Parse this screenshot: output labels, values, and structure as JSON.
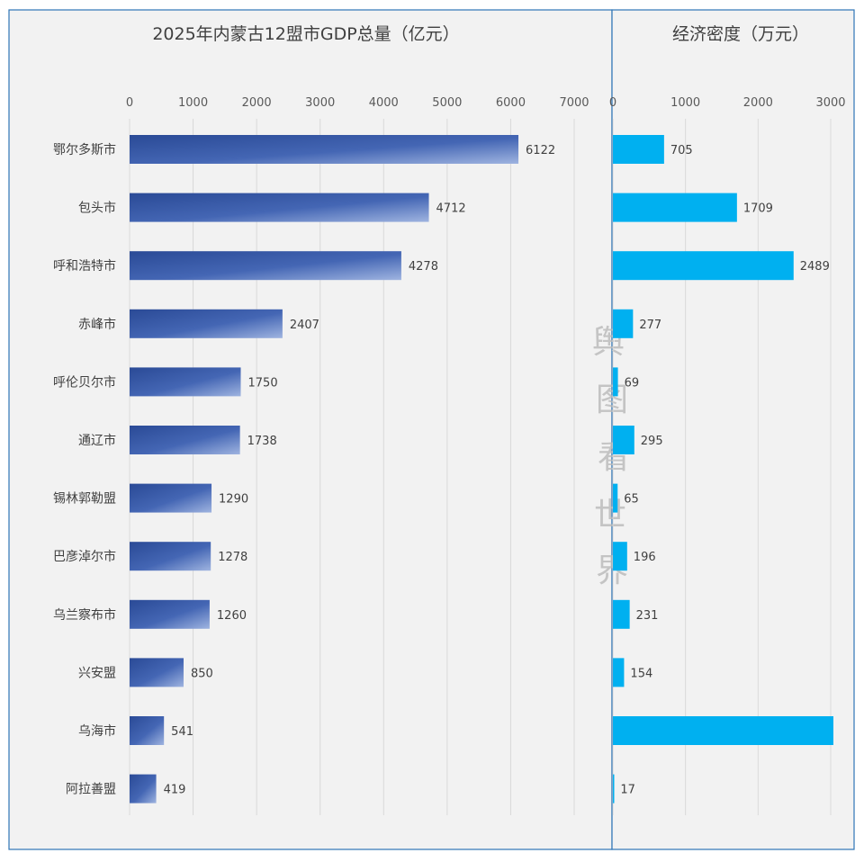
{
  "chart_data": [
    {
      "type": "bar",
      "orientation": "horizontal",
      "title": "2025年内蒙古12盟市GDP总量（亿元）",
      "categories": [
        "鄂尔多斯市",
        "包头市",
        "呼和浩特市",
        "赤峰市",
        "呼伦贝尔市",
        "通辽市",
        "锡林郭勒盟",
        "巴彦淖尔市",
        "乌兰察布市",
        "兴安盟",
        "乌海市",
        "阿拉善盟"
      ],
      "values": [
        6122,
        4712,
        4278,
        2407,
        1750,
        1738,
        1290,
        1278,
        1260,
        850,
        541,
        419
      ],
      "xlim": [
        0,
        7000
      ],
      "xticks": [
        0,
        1000,
        2000,
        3000,
        4000,
        5000,
        6000,
        7000
      ],
      "axis_position": "top",
      "grid": true,
      "data_labels": true,
      "color": "#3a5fae"
    },
    {
      "type": "bar",
      "orientation": "horizontal",
      "title": "经济密度（万元）",
      "categories": [
        "鄂尔多斯市",
        "包头市",
        "呼和浩特市",
        "赤峰市",
        "呼伦贝尔市",
        "通辽市",
        "锡林郭勒盟",
        "巴彦淖尔市",
        "乌兰察布市",
        "兴安盟",
        "乌海市",
        "阿拉善盟"
      ],
      "values": [
        705,
        1709,
        2489,
        277,
        69,
        295,
        65,
        196,
        231,
        154,
        3100,
        17
      ],
      "value_labels": [
        "705",
        "1709",
        "2489",
        "277",
        "69",
        "295",
        "65",
        "196",
        "231",
        "154",
        "",
        "17"
      ],
      "xlim": [
        0,
        3000
      ],
      "xticks": [
        0,
        1000,
        2000,
        3000
      ],
      "axis_position": "top",
      "grid": true,
      "data_labels": true,
      "color": "#00b0f0"
    }
  ],
  "watermark": {
    "chars": [
      "舆",
      "图",
      "看",
      "世",
      "界"
    ],
    "color": "#b8b8b8"
  }
}
